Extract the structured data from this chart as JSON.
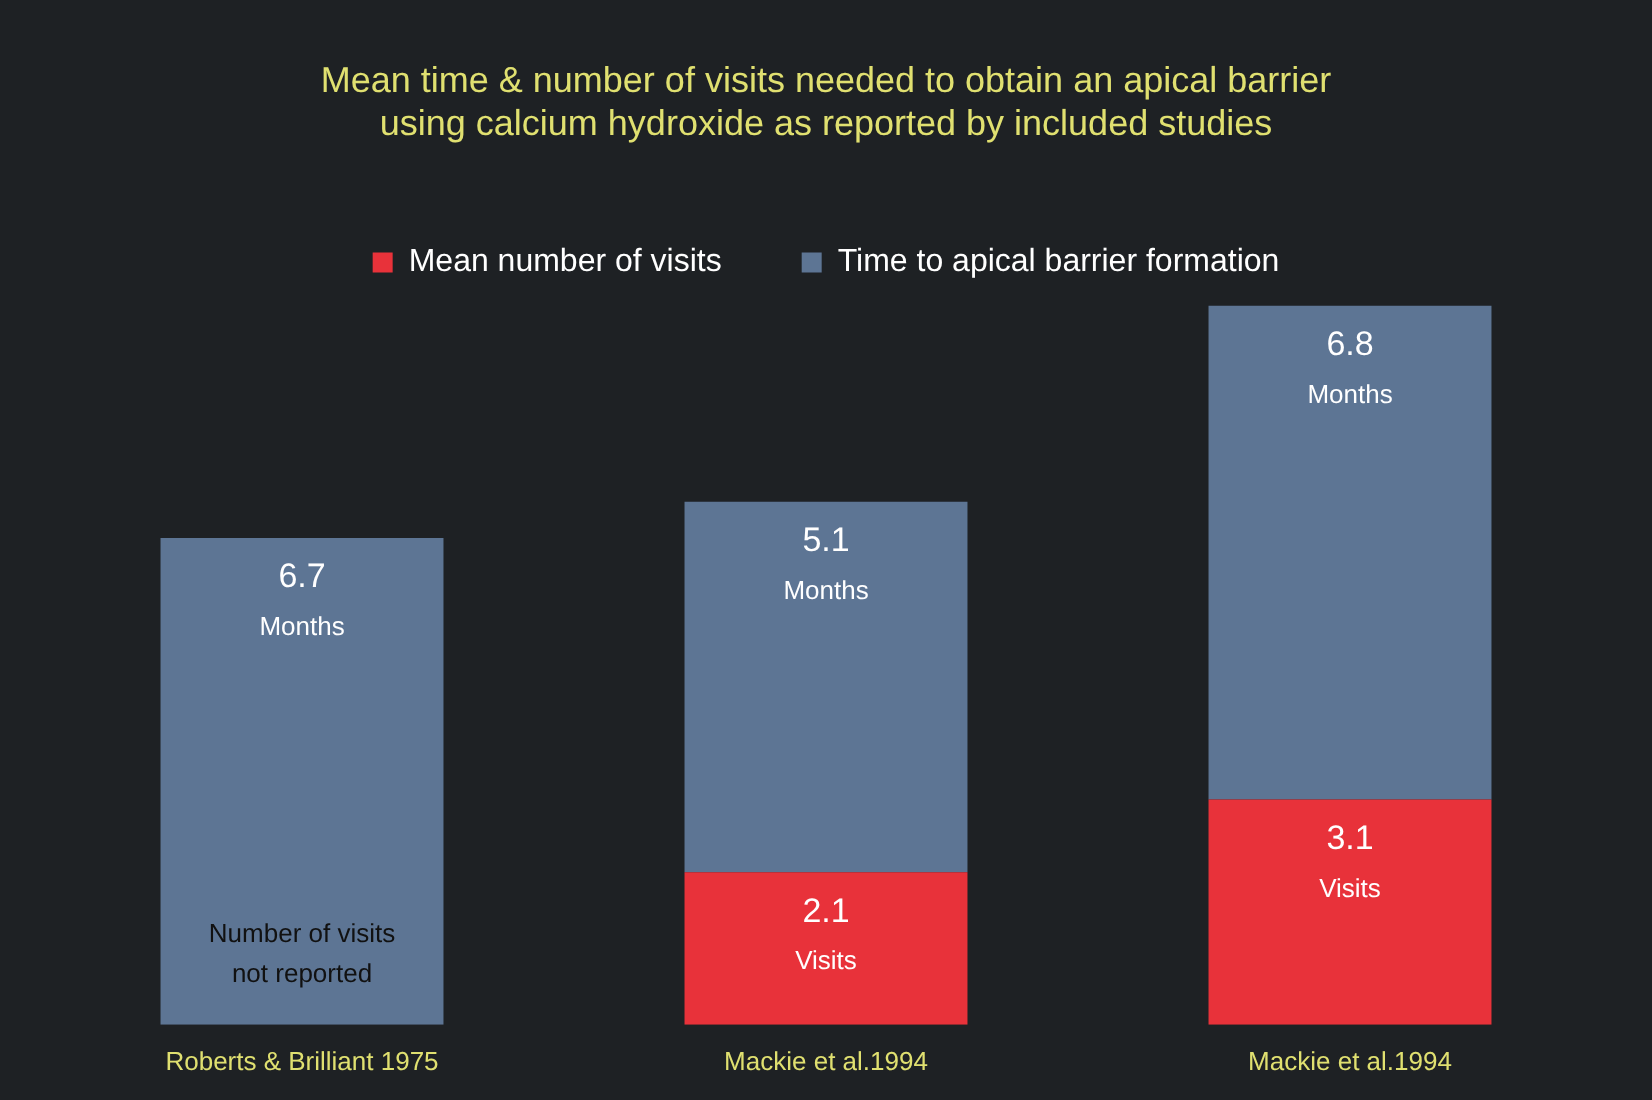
{
  "chart_data": {
    "type": "bar",
    "title": "Mean time & number of visits needed to obtain an apical barrier using calcium hydroxide as reported by included studies",
    "categories": [
      "Roberts & Brilliant 1975",
      "Mackie et al.1994",
      "Mackie et al.1994"
    ],
    "stacked": true,
    "series": [
      {
        "name": "Mean number of visits",
        "color": "#e8323a",
        "values": [
          null,
          2.1,
          3.1
        ],
        "value_labels": [
          null,
          "2.1 Visits",
          "3.1 Visits"
        ]
      },
      {
        "name": "Time to apical barrier formation",
        "color": "#5d7594",
        "values": [
          6.7,
          5.1,
          6.8
        ],
        "value_labels": [
          "6.7 Months",
          "5.1 Months",
          "6.8 Months"
        ]
      }
    ],
    "annotations": [
      "Number of visits not reported"
    ],
    "legend": "top",
    "tick_labels": "x"
  }
}
